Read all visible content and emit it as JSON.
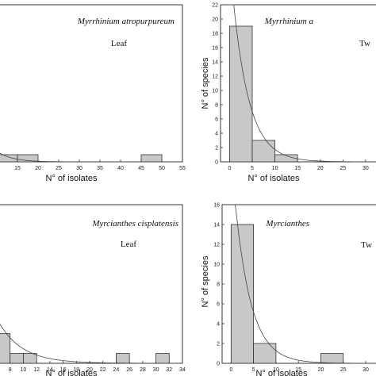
{
  "chart_data": [
    {
      "type": "bar",
      "title": "Myrrhinium atropurpureum",
      "subtitle": "Leaf",
      "xlabel": "N° of isolates",
      "ylabel": "",
      "xlim": [
        10,
        55
      ],
      "ylim": [
        0,
        22
      ],
      "xticks": [
        "15",
        "20",
        "25",
        "30",
        "35",
        "40",
        "45",
        "50",
        "55"
      ],
      "bins": [
        [
          10,
          15
        ],
        [
          15,
          20
        ],
        [
          45,
          50
        ]
      ],
      "values": [
        1,
        1,
        1
      ],
      "curve": "decay"
    },
    {
      "type": "bar",
      "title": "Myrrhinium a",
      "subtitle": "Tw",
      "xlabel": "N° of isolates",
      "ylabel": "N° of species",
      "xlim": [
        -2,
        33
      ],
      "ylim": [
        0,
        22
      ],
      "xticks": [
        "0",
        "5",
        "10",
        "15",
        "20",
        "25",
        "30"
      ],
      "yticks": [
        "0",
        "2",
        "4",
        "6",
        "8",
        "10",
        "12",
        "14",
        "16",
        "18",
        "20",
        "22"
      ],
      "bins": [
        [
          0,
          5
        ],
        [
          5,
          10
        ],
        [
          10,
          15
        ]
      ],
      "values": [
        19,
        3,
        1
      ],
      "curve": "decay"
    },
    {
      "type": "bar",
      "title": "Myrcianthes cisplatensis",
      "subtitle": "Leaf",
      "xlabel": "N° of isolates",
      "ylabel": "",
      "xlim": [
        6,
        34
      ],
      "ylim": [
        0,
        16
      ],
      "xticks": [
        "8",
        "10",
        "12",
        "14",
        "16",
        "18",
        "20",
        "22",
        "24",
        "26",
        "28",
        "30",
        "32",
        "34"
      ],
      "bins": [
        [
          6,
          8
        ],
        [
          8,
          10
        ],
        [
          10,
          12
        ],
        [
          24,
          26
        ],
        [
          30,
          32
        ]
      ],
      "values": [
        3,
        1,
        1,
        1,
        1
      ],
      "curve": "decay"
    },
    {
      "type": "bar",
      "title": "Myrcianthes",
      "subtitle": "Tw",
      "xlabel": "N° of isolates",
      "ylabel": "N° of species",
      "xlim": [
        -2,
        33
      ],
      "ylim": [
        0,
        16
      ],
      "xticks": [
        "0",
        "5",
        "10",
        "15",
        "20",
        "25",
        "30"
      ],
      "yticks": [
        "0",
        "2",
        "4",
        "6",
        "8",
        "10",
        "12",
        "14",
        "16"
      ],
      "bins": [
        [
          0,
          5
        ],
        [
          5,
          10
        ],
        [
          20,
          25
        ]
      ],
      "values": [
        14,
        2,
        1
      ],
      "curve": "decay"
    }
  ],
  "colors": {
    "bar_fill": "#c8c8c8",
    "bar_stroke": "#333333",
    "curve": "#444444",
    "frame": "#333333"
  }
}
